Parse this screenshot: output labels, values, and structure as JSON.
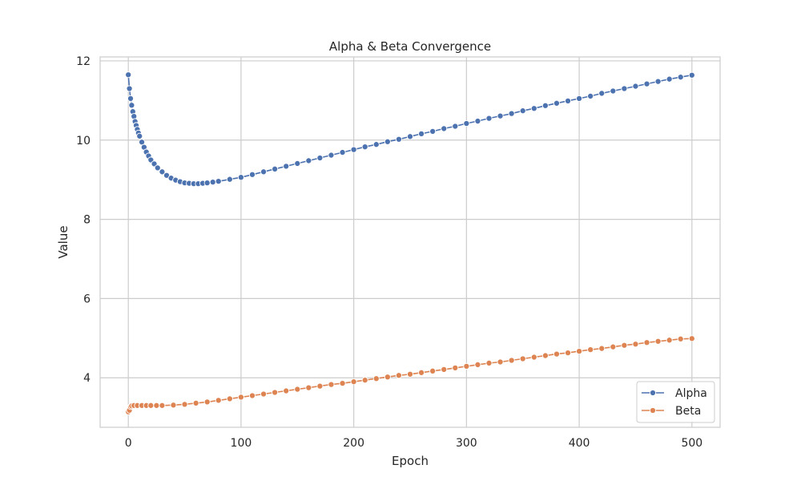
{
  "chart_data": {
    "type": "line",
    "title": "Alpha & Beta Convergence",
    "xlabel": "Epoch",
    "ylabel": "Value",
    "xlim": [
      -25,
      525
    ],
    "ylim": [
      2.75,
      12.1
    ],
    "xticks": [
      0,
      100,
      200,
      300,
      400,
      500
    ],
    "yticks": [
      4,
      6,
      8,
      10,
      12
    ],
    "grid": true,
    "legend_position": "bottom-right",
    "series": [
      {
        "name": "Alpha",
        "color": "#4c72b0",
        "x": [
          0,
          1,
          2,
          3,
          4,
          5,
          6,
          7,
          8,
          9,
          10,
          12,
          14,
          16,
          18,
          20,
          23,
          26,
          30,
          34,
          38,
          42,
          46,
          50,
          54,
          58,
          62,
          66,
          70,
          75,
          80,
          90,
          100,
          110,
          120,
          130,
          140,
          150,
          160,
          170,
          180,
          190,
          200,
          210,
          220,
          230,
          240,
          250,
          260,
          270,
          280,
          290,
          300,
          310,
          320,
          330,
          340,
          350,
          360,
          370,
          380,
          390,
          400,
          410,
          420,
          430,
          440,
          450,
          460,
          470,
          480,
          490,
          500
        ],
        "values": [
          11.65,
          11.3,
          11.05,
          10.88,
          10.72,
          10.6,
          10.47,
          10.37,
          10.27,
          10.18,
          10.1,
          9.95,
          9.82,
          9.7,
          9.6,
          9.5,
          9.4,
          9.3,
          9.2,
          9.11,
          9.04,
          8.99,
          8.95,
          8.92,
          8.91,
          8.9,
          8.9,
          8.91,
          8.92,
          8.94,
          8.96,
          9.01,
          9.06,
          9.13,
          9.2,
          9.27,
          9.34,
          9.41,
          9.48,
          9.55,
          9.62,
          9.69,
          9.76,
          9.83,
          9.89,
          9.96,
          10.02,
          10.09,
          10.16,
          10.22,
          10.29,
          10.35,
          10.42,
          10.48,
          10.55,
          10.61,
          10.67,
          10.74,
          10.8,
          10.87,
          10.93,
          10.99,
          11.05,
          11.11,
          11.18,
          11.24,
          11.3,
          11.36,
          11.42,
          11.48,
          11.54,
          11.59,
          11.64
        ]
      },
      {
        "name": "Beta",
        "color": "#dd8452",
        "x": [
          0,
          1,
          2,
          3,
          5,
          8,
          12,
          16,
          20,
          25,
          30,
          40,
          50,
          60,
          70,
          80,
          90,
          100,
          110,
          120,
          130,
          140,
          150,
          160,
          170,
          180,
          190,
          200,
          210,
          220,
          230,
          240,
          250,
          260,
          270,
          280,
          290,
          300,
          310,
          320,
          330,
          340,
          350,
          360,
          370,
          380,
          390,
          400,
          410,
          420,
          430,
          440,
          450,
          460,
          470,
          480,
          490,
          500
        ],
        "values": [
          3.14,
          3.18,
          3.27,
          3.29,
          3.3,
          3.3,
          3.3,
          3.3,
          3.3,
          3.3,
          3.3,
          3.31,
          3.33,
          3.36,
          3.39,
          3.43,
          3.47,
          3.51,
          3.55,
          3.59,
          3.63,
          3.67,
          3.71,
          3.75,
          3.79,
          3.83,
          3.86,
          3.9,
          3.94,
          3.98,
          4.02,
          4.06,
          4.09,
          4.13,
          4.17,
          4.21,
          4.25,
          4.29,
          4.33,
          4.37,
          4.4,
          4.44,
          4.48,
          4.52,
          4.56,
          4.6,
          4.63,
          4.67,
          4.71,
          4.74,
          4.78,
          4.82,
          4.85,
          4.89,
          4.92,
          4.95,
          4.98,
          4.99
        ]
      }
    ]
  }
}
